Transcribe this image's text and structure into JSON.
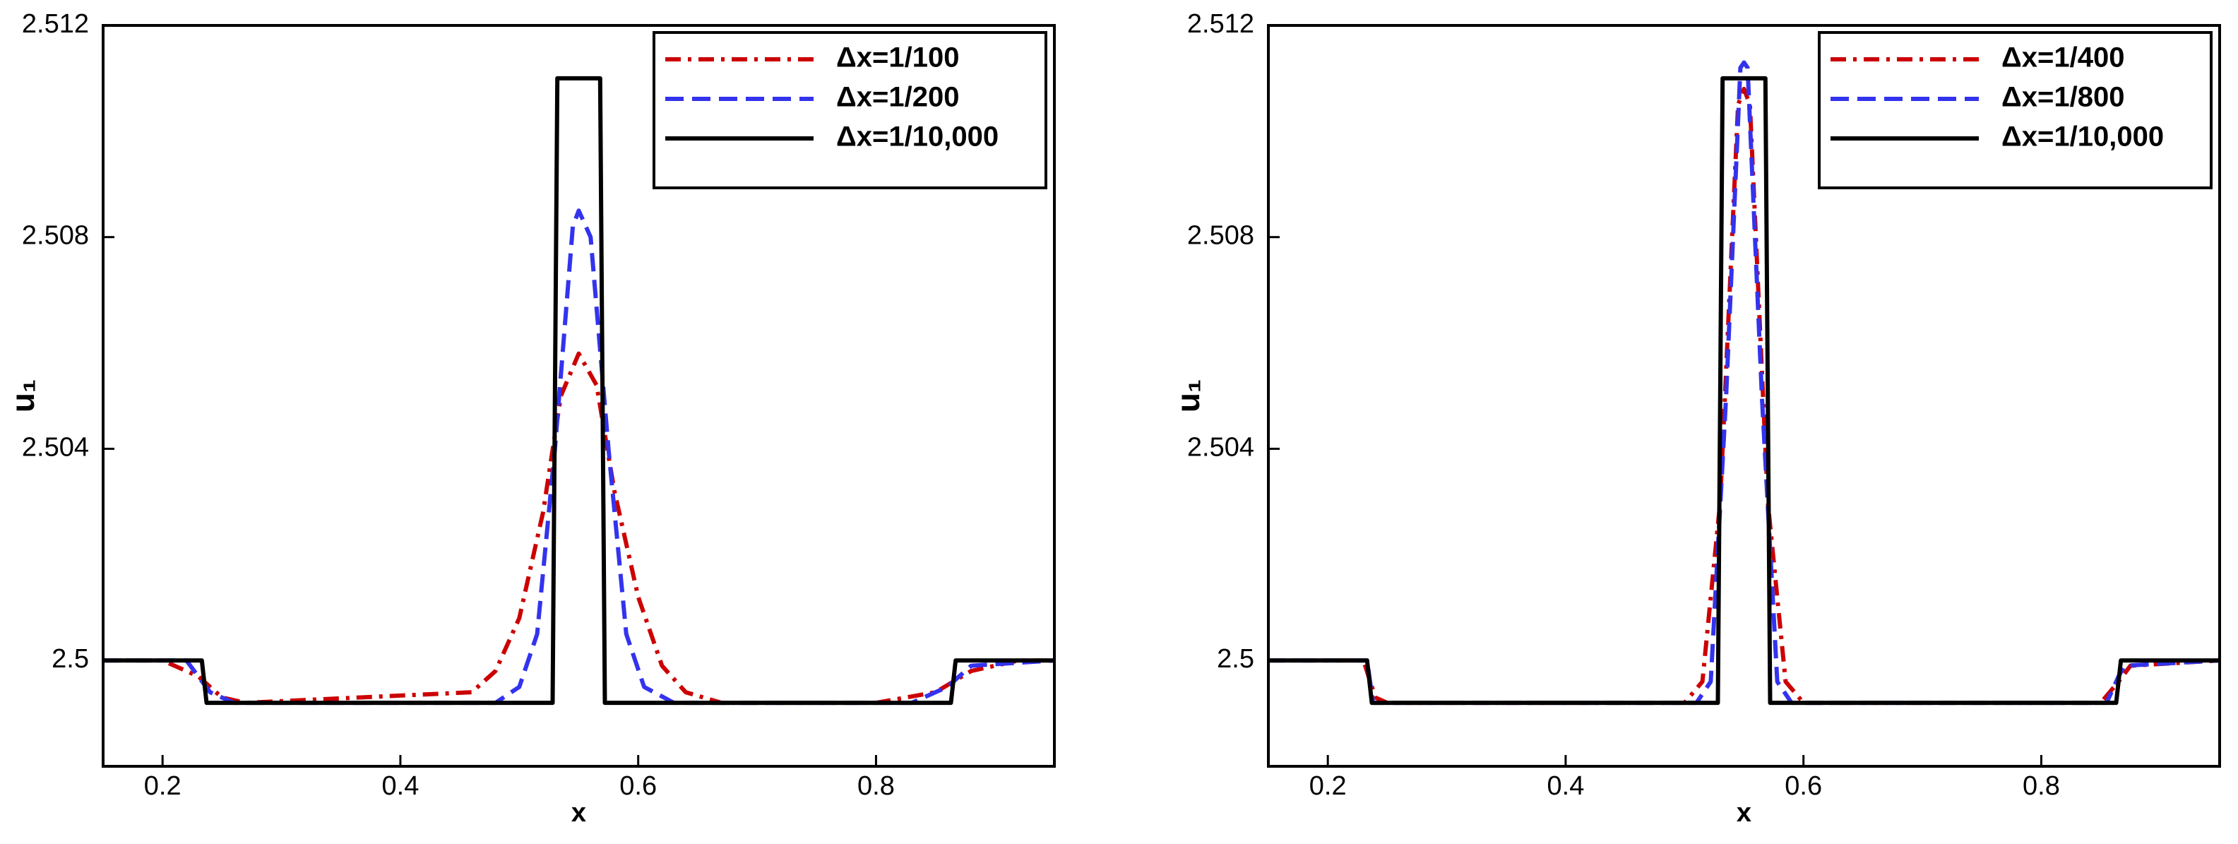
{
  "chart_data": [
    {
      "type": "line",
      "xlabel": "x",
      "ylabel": "u₁",
      "xlim": [
        0.15,
        0.95
      ],
      "ylim": [
        2.498,
        2.512
      ],
      "xticks": [
        0.2,
        0.4,
        0.6,
        0.8
      ],
      "yticks": [
        2.5,
        2.504,
        2.508,
        2.512
      ],
      "legend": "upper right",
      "series": [
        {
          "name": "Δx=1/100",
          "color": "#cc0000",
          "style": "dashdot",
          "x": [
            0.15,
            0.2,
            0.23,
            0.25,
            0.27,
            0.46,
            0.48,
            0.5,
            0.52,
            0.535,
            0.55,
            0.565,
            0.58,
            0.6,
            0.62,
            0.64,
            0.67,
            0.8,
            0.85,
            0.88,
            0.92,
            0.95
          ],
          "values": [
            2.5,
            2.5,
            2.4997,
            2.4993,
            2.4992,
            2.4994,
            2.4998,
            2.5008,
            2.5028,
            2.505,
            2.5058,
            2.5052,
            2.5032,
            2.5012,
            2.4999,
            2.4994,
            2.4992,
            2.4992,
            2.4994,
            2.4998,
            2.5,
            2.5
          ]
        },
        {
          "name": "Δx=1/200",
          "color": "#3333ee",
          "style": "dashed",
          "x": [
            0.15,
            0.22,
            0.24,
            0.26,
            0.48,
            0.5,
            0.515,
            0.53,
            0.545,
            0.55,
            0.56,
            0.575,
            0.59,
            0.605,
            0.63,
            0.83,
            0.86,
            0.88,
            0.95
          ],
          "values": [
            2.5,
            2.5,
            2.4994,
            2.4992,
            2.4992,
            2.4995,
            2.5005,
            2.504,
            2.5082,
            2.5085,
            2.508,
            2.504,
            2.5005,
            2.4995,
            2.4992,
            2.4992,
            2.4995,
            2.4999,
            2.5
          ]
        },
        {
          "name": "Δx=1/10,000",
          "color": "#000000",
          "style": "solid",
          "x": [
            0.15,
            0.233,
            0.237,
            0.528,
            0.532,
            0.568,
            0.572,
            0.863,
            0.867,
            0.95
          ],
          "values": [
            2.5,
            2.5,
            2.4992,
            2.4992,
            2.511,
            2.511,
            2.4992,
            2.4992,
            2.5,
            2.5
          ]
        }
      ]
    },
    {
      "type": "line",
      "xlabel": "x",
      "ylabel": "u₁",
      "xlim": [
        0.15,
        0.95
      ],
      "ylim": [
        2.498,
        2.512
      ],
      "xticks": [
        0.2,
        0.4,
        0.6,
        0.8
      ],
      "yticks": [
        2.5,
        2.504,
        2.508,
        2.512
      ],
      "legend": "upper right",
      "series": [
        {
          "name": "Δx=1/400",
          "color": "#cc0000",
          "style": "dashdot",
          "x": [
            0.15,
            0.23,
            0.24,
            0.25,
            0.5,
            0.515,
            0.53,
            0.545,
            0.55,
            0.555,
            0.57,
            0.585,
            0.6,
            0.85,
            0.865,
            0.875,
            0.95
          ],
          "values": [
            2.5,
            2.5,
            2.4993,
            2.4992,
            2.4992,
            2.4996,
            2.503,
            2.5105,
            2.5108,
            2.5105,
            2.503,
            2.4996,
            2.4992,
            2.4992,
            2.4996,
            2.4999,
            2.5
          ]
        },
        {
          "name": "Δx=1/800",
          "color": "#3333ee",
          "style": "dashed",
          "x": [
            0.15,
            0.233,
            0.238,
            0.51,
            0.522,
            0.535,
            0.547,
            0.55,
            0.553,
            0.565,
            0.578,
            0.59,
            0.855,
            0.865,
            0.87,
            0.95
          ],
          "values": [
            2.5,
            2.5,
            2.4992,
            2.4992,
            2.4996,
            2.505,
            2.5112,
            2.5113,
            2.5112,
            2.505,
            2.4996,
            2.4992,
            2.4992,
            2.4997,
            2.4999,
            2.5
          ]
        },
        {
          "name": "Δx=1/10,000",
          "color": "#000000",
          "style": "solid",
          "x": [
            0.15,
            0.233,
            0.237,
            0.528,
            0.532,
            0.568,
            0.572,
            0.863,
            0.867,
            0.95
          ],
          "values": [
            2.5,
            2.5,
            2.4992,
            2.4992,
            2.511,
            2.511,
            2.4992,
            2.4992,
            2.5,
            2.5
          ]
        }
      ]
    }
  ]
}
